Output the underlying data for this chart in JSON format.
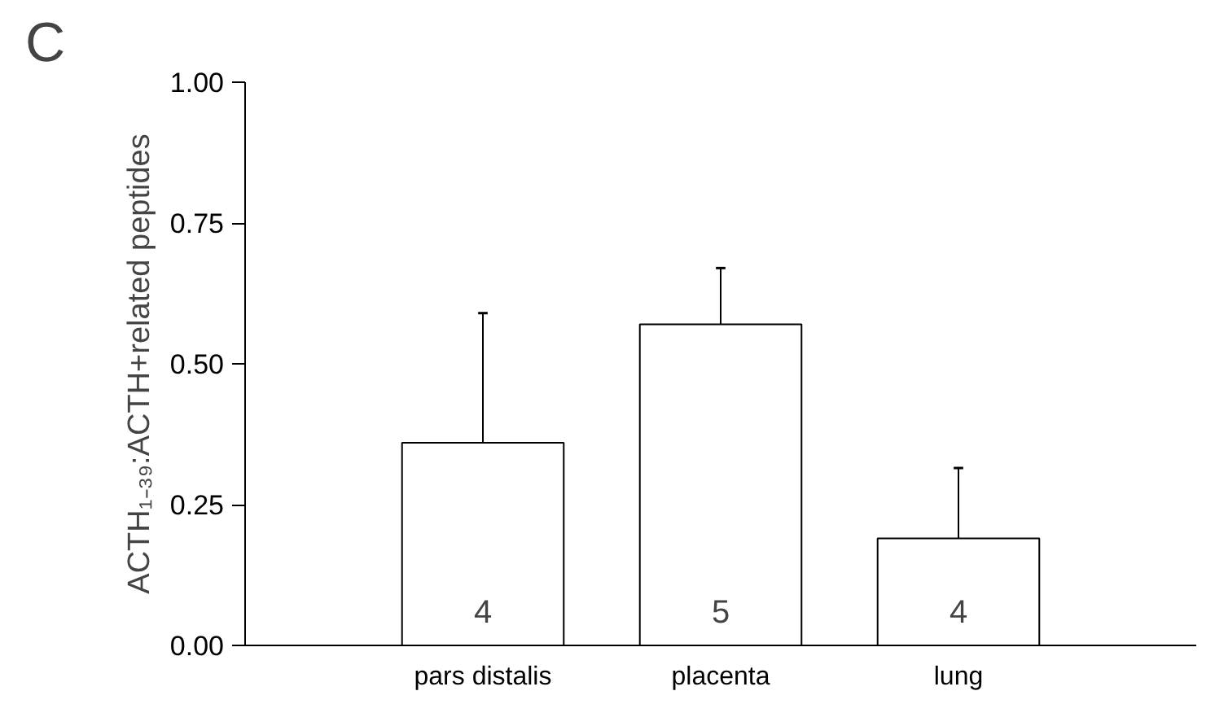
{
  "chart_data": {
    "type": "bar",
    "title": "C",
    "ylabel": "ACTH₁₋₃₉:ACTH+related peptides",
    "categories": [
      "pars distalis",
      "placenta",
      "lung"
    ],
    "values": [
      0.36,
      0.57,
      0.19
    ],
    "errors": [
      [
        0.36,
        0.59
      ],
      [
        0.57,
        0.67
      ],
      [
        0.19,
        0.315
      ]
    ],
    "color": "#ffffff",
    "ylim": [
      0,
      1
    ],
    "yticks": [
      {
        "value": 0,
        "label": "0.00"
      },
      {
        "value": 0.25,
        "label": "0.25"
      },
      {
        "value": 0.5,
        "label": "0.50"
      },
      {
        "value": 0.75,
        "label": "0.75"
      },
      {
        "value": 1,
        "label": "1.00"
      }
    ],
    "grid": false,
    "annotations": [
      "4",
      "5",
      "4"
    ]
  }
}
